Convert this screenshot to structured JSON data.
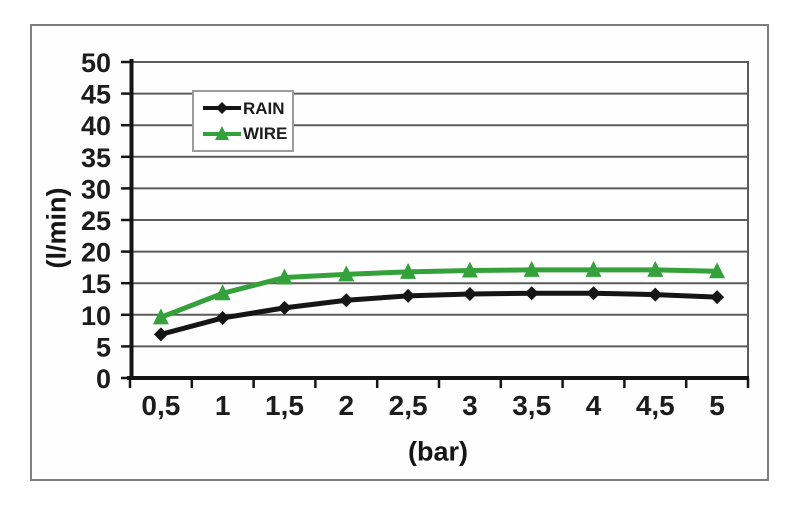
{
  "chart_data": {
    "type": "line",
    "title": "",
    "xlabel": "(bar)",
    "ylabel": "(l/min)",
    "x_categories": [
      "0,5",
      "1",
      "1,5",
      "2",
      "2,5",
      "3",
      "3,5",
      "4",
      "4,5",
      "5"
    ],
    "x_values": [
      0.5,
      1,
      1.5,
      2,
      2.5,
      3,
      3.5,
      4,
      4.5,
      5
    ],
    "y_tick_labels": [
      "0",
      "5",
      "10",
      "15",
      "20",
      "25",
      "30",
      "35",
      "40",
      "45",
      "50"
    ],
    "ylim": [
      0,
      50
    ],
    "y_tick_step": 5,
    "grid": "horizontal",
    "legend": {
      "position": "top-left-inside",
      "entries": [
        "RAIN",
        "WIRE"
      ]
    },
    "series": [
      {
        "name": "RAIN",
        "marker": "diamond",
        "color": "#151515",
        "values": [
          6.9,
          9.5,
          11.1,
          12.3,
          13.0,
          13.3,
          13.4,
          13.4,
          13.2,
          12.8
        ]
      },
      {
        "name": "WIRE",
        "marker": "triangle",
        "color": "#35a13a",
        "values": [
          9.6,
          13.4,
          15.9,
          16.4,
          16.8,
          17.0,
          17.1,
          17.1,
          17.1,
          16.9
        ]
      }
    ],
    "colors": {
      "gridline": "#5c5c5c",
      "axis": "#151515",
      "plot_border": "#5c5c5c",
      "frame_border": "#7e7e7e",
      "text": "#1c1c1c"
    }
  }
}
